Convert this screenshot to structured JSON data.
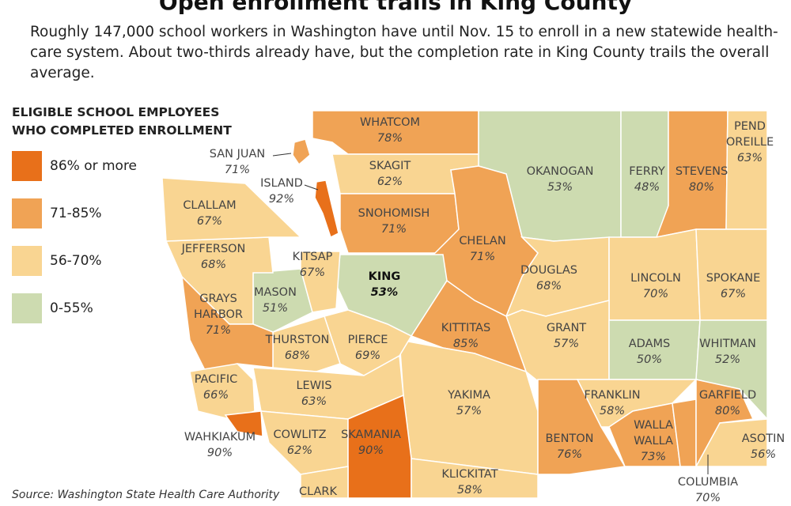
{
  "header": {
    "title": "Open enrollment trails in King County",
    "intro": "Roughly 147,000 school workers in Washington have until Nov. 15 to enroll in a new statewide health-care system. About two-thirds already have, but the completion rate in King County trails the overall average."
  },
  "legend": {
    "title": [
      "ELIGIBLE SCHOOL EMPLOYEES",
      "WHO COMPLETED ENROLLMENT"
    ],
    "items": [
      "86% or more",
      "71-85%",
      "56-70%",
      "0-55%"
    ]
  },
  "counties": [
    {
      "name": "WHATCOM",
      "pct": "78%"
    },
    {
      "name": "SAN JUAN",
      "pct": "71%"
    },
    {
      "name": "ISLAND",
      "pct": "92%"
    },
    {
      "name": "SKAGIT",
      "pct": "62%"
    },
    {
      "name": "OKANOGAN",
      "pct": "53%"
    },
    {
      "name": "FERRY",
      "pct": "48%"
    },
    {
      "name": "STEVENS",
      "pct": "80%"
    },
    {
      "name": "PEND OREILLE",
      "pct": "63%"
    },
    {
      "name": "CLALLAM",
      "pct": "67%"
    },
    {
      "name": "SNOHOMISH",
      "pct": "71%"
    },
    {
      "name": "CHELAN",
      "pct": "71%"
    },
    {
      "name": "JEFFERSON",
      "pct": "68%"
    },
    {
      "name": "KITSAP",
      "pct": "67%"
    },
    {
      "name": "KING",
      "pct": "53%"
    },
    {
      "name": "MASON",
      "pct": "51%"
    },
    {
      "name": "GRAYS HARBOR",
      "pct": "71%"
    },
    {
      "name": "DOUGLAS",
      "pct": "68%"
    },
    {
      "name": "LINCOLN",
      "pct": "70%"
    },
    {
      "name": "SPOKANE",
      "pct": "67%"
    },
    {
      "name": "KITTITAS",
      "pct": "85%"
    },
    {
      "name": "GRANT",
      "pct": "57%"
    },
    {
      "name": "THURSTON",
      "pct": "68%"
    },
    {
      "name": "PIERCE",
      "pct": "69%"
    },
    {
      "name": "ADAMS",
      "pct": "50%"
    },
    {
      "name": "WHITMAN",
      "pct": "52%"
    },
    {
      "name": "PACIFIC",
      "pct": "66%"
    },
    {
      "name": "LEWIS",
      "pct": "63%"
    },
    {
      "name": "YAKIMA",
      "pct": "57%"
    },
    {
      "name": "FRANKLIN",
      "pct": "58%"
    },
    {
      "name": "GARFIELD",
      "pct": "80%"
    },
    {
      "name": "WAHKIAKUM",
      "pct": "90%"
    },
    {
      "name": "COWLITZ",
      "pct": "62%"
    },
    {
      "name": "SKAMANIA",
      "pct": "90%"
    },
    {
      "name": "BENTON",
      "pct": "76%"
    },
    {
      "name": "WALLA WALLA",
      "pct": "73%"
    },
    {
      "name": "ASOTIN",
      "pct": "56%"
    },
    {
      "name": "COLUMBIA",
      "pct": "70%"
    },
    {
      "name": "KLICKITAT",
      "pct": "58%"
    },
    {
      "name": "CLARK"
    }
  ],
  "source": "Source: Washington State Health Care Authority"
}
